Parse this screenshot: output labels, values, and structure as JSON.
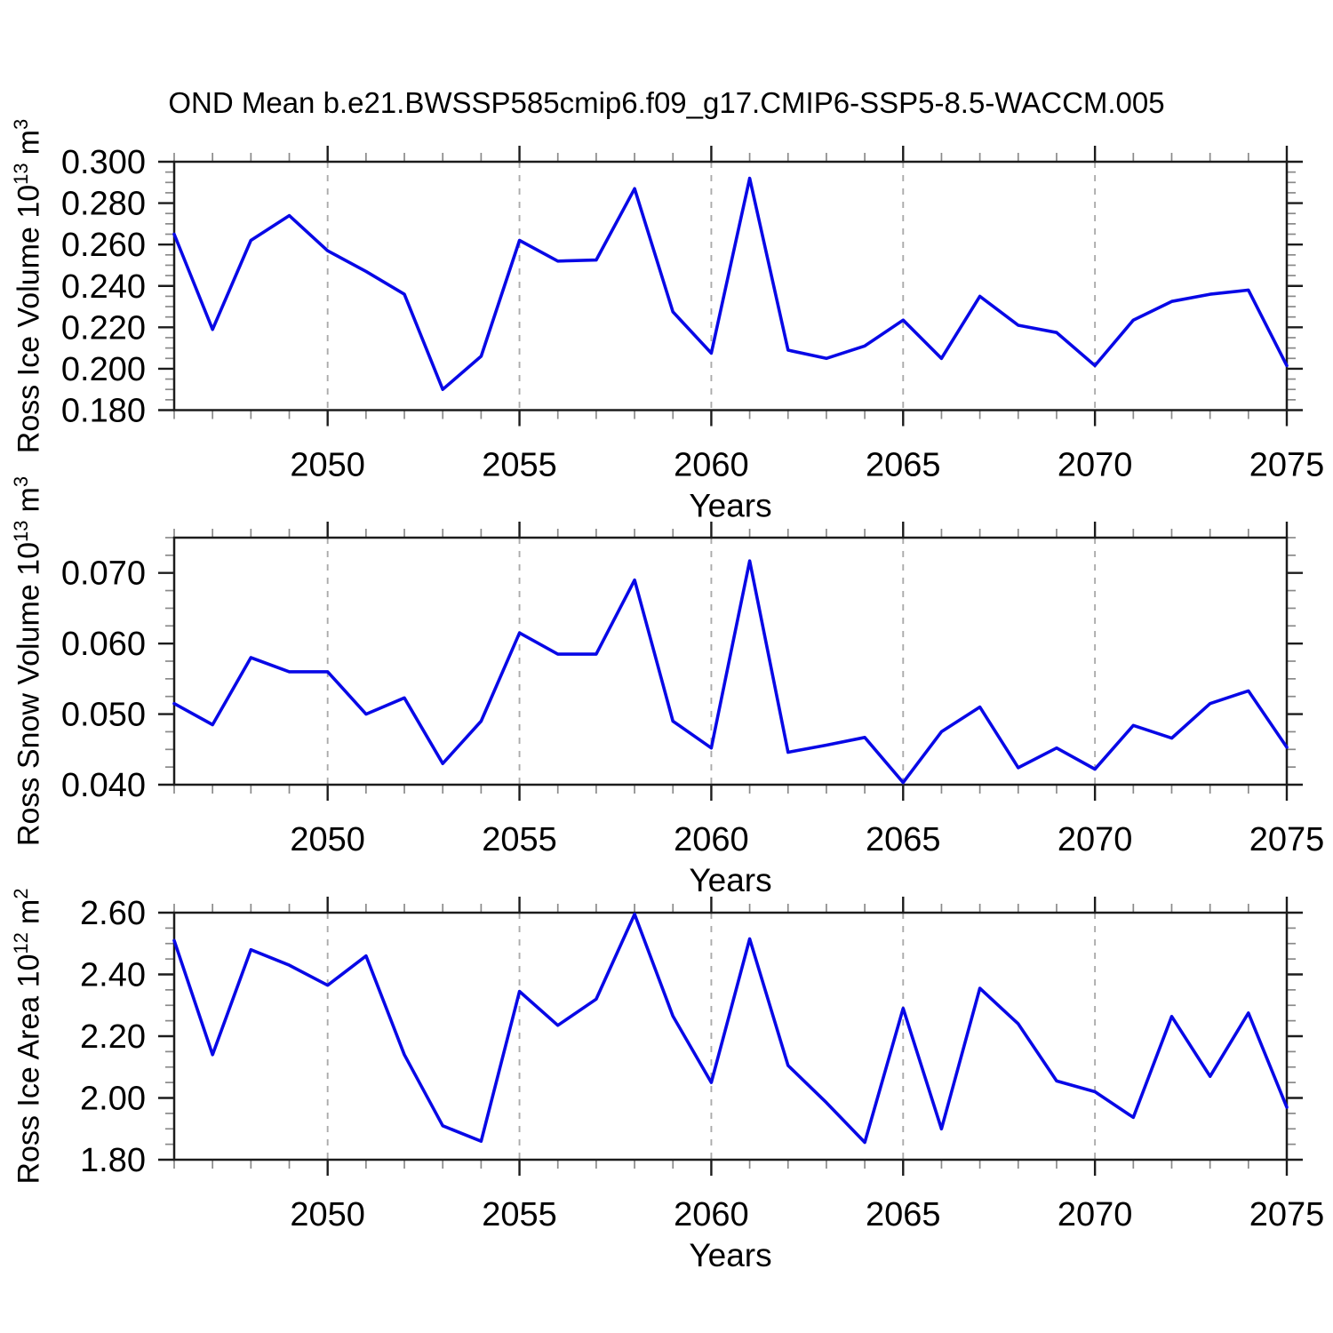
{
  "page": {
    "title": "OND Mean b.e21.BWSSP585cmip6.f09_g17.CMIP6-SSP5-8.5-WACCM.005",
    "background": "#ffffff"
  },
  "style": {
    "line_color": "#0808e6",
    "grid_color": "#ababab",
    "axis_color": "#1c1c1c",
    "minor_tick_color": "#8a8a8a",
    "text_color": "#000000"
  },
  "chart_data": [
    {
      "id": "ross-ice-volume",
      "type": "line",
      "title": "",
      "xlabel": "Years",
      "ylabel": {
        "base": "Ross Ice Volume 10",
        "exp": "13",
        "unit": "m",
        "unit_exp": "3"
      },
      "xlim": [
        2046,
        2075
      ],
      "ylim": [
        0.18,
        0.3
      ],
      "grid": "x-dashed",
      "legend": "none",
      "x": [
        2046,
        2047,
        2048,
        2049,
        2050,
        2051,
        2052,
        2053,
        2054,
        2055,
        2056,
        2057,
        2058,
        2059,
        2060,
        2061,
        2062,
        2063,
        2064,
        2065,
        2066,
        2067,
        2068,
        2069,
        2070,
        2071,
        2072,
        2073,
        2074,
        2075
      ],
      "series": [
        {
          "name": "Ross Ice Volume",
          "values": [
            0.265,
            0.219,
            0.262,
            0.274,
            0.257,
            0.247,
            0.236,
            0.19,
            0.206,
            0.262,
            0.252,
            0.2525,
            0.287,
            0.2275,
            0.2075,
            0.292,
            0.209,
            0.205,
            0.211,
            0.2235,
            0.205,
            0.235,
            0.221,
            0.2175,
            0.2015,
            0.2235,
            0.2325,
            0.236,
            0.238,
            0.2015
          ]
        }
      ],
      "ytick_values": [
        0.18,
        0.2,
        0.22,
        0.24,
        0.26,
        0.28,
        0.3
      ],
      "ytick_labels": [
        "0.180",
        "0.200",
        "0.220",
        "0.240",
        "0.260",
        "0.280",
        "0.300"
      ],
      "y_minor_step": 0.005,
      "xtick_values": [
        2050,
        2055,
        2060,
        2065,
        2070,
        2075
      ],
      "xtick_labels": [
        "2050",
        "2055",
        "2060",
        "2065",
        "2070",
        "2075"
      ],
      "x_minor_step": 1,
      "grid_x": [
        2050,
        2055,
        2060,
        2065,
        2070
      ]
    },
    {
      "id": "ross-snow-volume",
      "type": "line",
      "title": "",
      "xlabel": "Years",
      "ylabel": {
        "base": "Ross Snow Volume 10",
        "exp": "13",
        "unit": "m",
        "unit_exp": "3"
      },
      "xlim": [
        2046,
        2075
      ],
      "ylim": [
        0.04,
        0.075
      ],
      "grid": "x-dashed",
      "legend": "none",
      "x": [
        2046,
        2047,
        2048,
        2049,
        2050,
        2051,
        2052,
        2053,
        2054,
        2055,
        2056,
        2057,
        2058,
        2059,
        2060,
        2061,
        2062,
        2063,
        2064,
        2065,
        2066,
        2067,
        2068,
        2069,
        2070,
        2071,
        2072,
        2073,
        2074,
        2075
      ],
      "series": [
        {
          "name": "Ross Snow Volume",
          "values": [
            0.0515,
            0.0485,
            0.058,
            0.056,
            0.056,
            0.05,
            0.0523,
            0.043,
            0.049,
            0.0615,
            0.0585,
            0.0585,
            0.069,
            0.049,
            0.0452,
            0.0717,
            0.0446,
            0.0456,
            0.0467,
            0.0403,
            0.0475,
            0.051,
            0.0424,
            0.0452,
            0.0422,
            0.0484,
            0.0466,
            0.0515,
            0.0533,
            0.0453
          ]
        }
      ],
      "ytick_values": [
        0.04,
        0.05,
        0.06,
        0.07
      ],
      "ytick_labels": [
        "0.040",
        "0.050",
        "0.060",
        "0.070"
      ],
      "y_minor_step": 0.0025,
      "xtick_values": [
        2050,
        2055,
        2060,
        2065,
        2070,
        2075
      ],
      "xtick_labels": [
        "2050",
        "2055",
        "2060",
        "2065",
        "2070",
        "2075"
      ],
      "x_minor_step": 1,
      "grid_x": [
        2050,
        2055,
        2060,
        2065,
        2070
      ]
    },
    {
      "id": "ross-ice-area",
      "type": "line",
      "title": "",
      "xlabel": "Years",
      "ylabel": {
        "base": "Ross Ice Area 10",
        "exp": "12",
        "unit": "m",
        "unit_exp": "2"
      },
      "xlim": [
        2046,
        2075
      ],
      "ylim": [
        1.8,
        2.6
      ],
      "grid": "x-dashed",
      "legend": "none",
      "x": [
        2046,
        2047,
        2048,
        2049,
        2050,
        2051,
        2052,
        2053,
        2054,
        2055,
        2056,
        2057,
        2058,
        2059,
        2060,
        2061,
        2062,
        2063,
        2064,
        2065,
        2066,
        2067,
        2068,
        2069,
        2070,
        2071,
        2072,
        2073,
        2074,
        2075
      ],
      "series": [
        {
          "name": "Ross Ice Area",
          "values": [
            2.51,
            2.14,
            2.48,
            2.43,
            2.365,
            2.46,
            2.14,
            1.91,
            1.86,
            2.345,
            2.235,
            2.32,
            2.595,
            2.265,
            2.05,
            2.515,
            2.105,
            1.985,
            1.856,
            2.29,
            1.9,
            2.355,
            2.24,
            2.055,
            2.02,
            1.937,
            2.264,
            2.07,
            2.275,
            1.97
          ]
        }
      ],
      "ytick_values": [
        1.8,
        2.0,
        2.2,
        2.4,
        2.6
      ],
      "ytick_labels": [
        "1.80",
        "2.00",
        "2.20",
        "2.40",
        "2.60"
      ],
      "y_minor_step": 0.05,
      "xtick_values": [
        2050,
        2055,
        2060,
        2065,
        2070,
        2075
      ],
      "xtick_labels": [
        "2050",
        "2055",
        "2060",
        "2065",
        "2070",
        "2075"
      ],
      "x_minor_step": 1,
      "grid_x": [
        2050,
        2055,
        2060,
        2065,
        2070
      ]
    }
  ]
}
